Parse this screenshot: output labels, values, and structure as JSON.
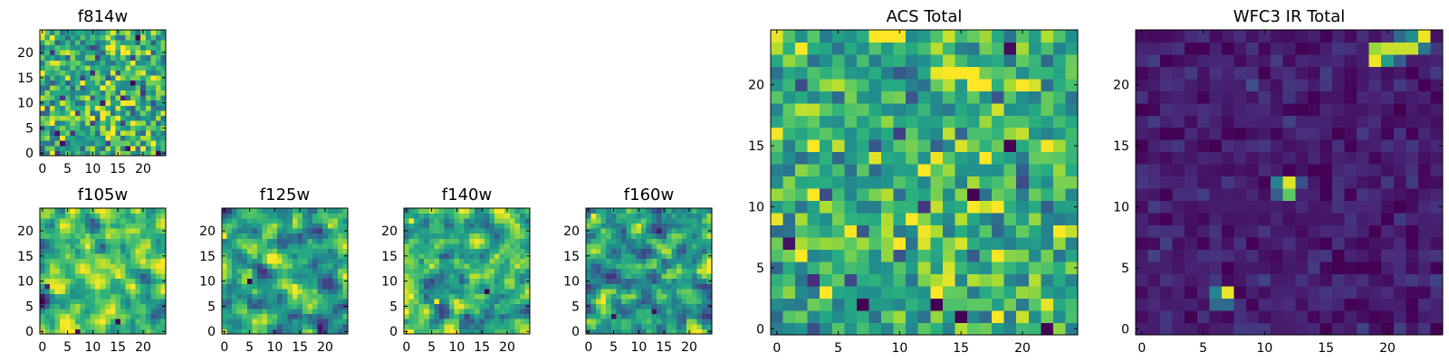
{
  "figure": {
    "description_free": true
  },
  "palette": {
    "colormap": "viridis",
    "frame_color": "#000000",
    "background": "#ffffff"
  },
  "chart_data": [
    {
      "id": "f814w",
      "type": "heatmap",
      "title": "f814w",
      "image_shape": [
        25,
        25
      ],
      "xlim": [
        -0.5,
        24.5
      ],
      "ylim": [
        -0.5,
        24.5
      ],
      "origin": "lower",
      "xticks": [
        0,
        5,
        10,
        15,
        20
      ],
      "yticks": [
        0,
        5,
        10,
        15,
        20
      ],
      "xtick_labels": [
        "0",
        "5",
        "10",
        "15",
        "20"
      ],
      "ytick_labels": [
        "0",
        "5",
        "10",
        "15",
        "20"
      ],
      "value_range": [
        0,
        1
      ],
      "pattern": "noise",
      "mean": 0.62,
      "spread": 0.2,
      "seed": 11,
      "features": [
        {
          "x": 18,
          "y": 14,
          "value": 0.0
        },
        {
          "x": 4,
          "y": 2,
          "value": 0.05
        },
        {
          "x": 17,
          "y": 1,
          "value": 0.05
        },
        {
          "x": 23,
          "y": 0,
          "value": 0.0
        },
        {
          "x": 2,
          "y": 0,
          "value": 1.0
        }
      ]
    },
    {
      "id": "f105w",
      "type": "heatmap",
      "title": "f105w",
      "image_shape": [
        25,
        25
      ],
      "xlim": [
        -0.5,
        24.5
      ],
      "ylim": [
        -0.5,
        24.5
      ],
      "origin": "lower",
      "xticks": [
        0,
        5,
        10,
        15,
        20
      ],
      "yticks": [
        0,
        5,
        10,
        15,
        20
      ],
      "xtick_labels": [
        "0",
        "5",
        "10",
        "15",
        "20"
      ],
      "ytick_labels": [
        "0",
        "5",
        "10",
        "15",
        "20"
      ],
      "value_range": [
        0,
        1
      ],
      "pattern": "smooth-noise",
      "mean": 0.66,
      "spread": 0.22,
      "seed": 23,
      "features": [
        {
          "x": 15,
          "y": 2,
          "value": 0.0
        },
        {
          "x": 7,
          "y": 0,
          "value": 0.05
        },
        {
          "x": 1,
          "y": 9,
          "value": 0.1
        }
      ]
    },
    {
      "id": "f125w",
      "type": "heatmap",
      "title": "f125w",
      "image_shape": [
        25,
        25
      ],
      "xlim": [
        -0.5,
        24.5
      ],
      "ylim": [
        -0.5,
        24.5
      ],
      "origin": "lower",
      "xticks": [
        0,
        5,
        10,
        15,
        20
      ],
      "yticks": [
        0,
        5,
        10,
        15,
        20
      ],
      "xtick_labels": [
        "0",
        "5",
        "10",
        "15",
        "20"
      ],
      "ytick_labels": [
        "0",
        "5",
        "10",
        "15",
        "20"
      ],
      "value_range": [
        0,
        1
      ],
      "pattern": "smooth-noise",
      "mean": 0.6,
      "spread": 0.25,
      "seed": 37,
      "features": [
        {
          "x": 5,
          "y": 10,
          "value": 0.0
        },
        {
          "x": 0,
          "y": 19,
          "value": 1.0
        },
        {
          "x": 0,
          "y": 0,
          "value": 1.0
        }
      ]
    },
    {
      "id": "f140w",
      "type": "heatmap",
      "title": "f140w",
      "image_shape": [
        25,
        25
      ],
      "xlim": [
        -0.5,
        24.5
      ],
      "ylim": [
        -0.5,
        24.5
      ],
      "origin": "lower",
      "xticks": [
        0,
        5,
        10,
        15,
        20
      ],
      "yticks": [
        0,
        5,
        10,
        15,
        20
      ],
      "xtick_labels": [
        "0",
        "5",
        "10",
        "15",
        "20"
      ],
      "ytick_labels": [
        "0",
        "5",
        "10",
        "15",
        "20"
      ],
      "value_range": [
        0,
        1
      ],
      "pattern": "smooth-noise",
      "mean": 0.56,
      "spread": 0.25,
      "seed": 51,
      "features": [
        {
          "x": 6,
          "y": 6,
          "value": 1.0
        },
        {
          "x": 16,
          "y": 8,
          "value": 0.0
        },
        {
          "x": 1,
          "y": 22,
          "value": 1.0
        },
        {
          "x": 0,
          "y": 0,
          "value": 1.0
        }
      ]
    },
    {
      "id": "f160w",
      "type": "heatmap",
      "title": "f160w",
      "image_shape": [
        25,
        25
      ],
      "xlim": [
        -0.5,
        24.5
      ],
      "ylim": [
        -0.5,
        24.5
      ],
      "origin": "lower",
      "xticks": [
        0,
        5,
        10,
        15,
        20
      ],
      "yticks": [
        0,
        5,
        10,
        15,
        20
      ],
      "xtick_labels": [
        "0",
        "5",
        "10",
        "15",
        "20"
      ],
      "ytick_labels": [
        "0",
        "5",
        "10",
        "15",
        "20"
      ],
      "value_range": [
        0,
        1
      ],
      "pattern": "smooth-noise",
      "mean": 0.55,
      "spread": 0.26,
      "seed": 67,
      "features": [
        {
          "x": 1,
          "y": 23,
          "value": 1.0
        },
        {
          "x": 13,
          "y": 4,
          "value": 0.05
        },
        {
          "x": 5,
          "y": 3,
          "value": 0.05
        }
      ]
    },
    {
      "id": "acs-total",
      "type": "heatmap",
      "title": "ACS Total",
      "image_shape": [
        25,
        25
      ],
      "xlim": [
        -0.5,
        24.5
      ],
      "ylim": [
        -0.5,
        24.5
      ],
      "origin": "lower",
      "xticks": [
        0,
        5,
        10,
        15,
        20
      ],
      "yticks": [
        0,
        5,
        10,
        15,
        20
      ],
      "xtick_labels": [
        "0",
        "5",
        "10",
        "15",
        "20"
      ],
      "ytick_labels": [
        "0",
        "5",
        "10",
        "15",
        "20"
      ],
      "value_range": [
        0,
        1
      ],
      "pattern": "noise",
      "mean": 0.62,
      "spread": 0.17,
      "seed": 11,
      "features": [
        {
          "x": 19,
          "y": 15,
          "value": 0.0
        },
        {
          "x": 16,
          "y": 11,
          "value": 0.0
        },
        {
          "x": 7,
          "y": 2,
          "value": 0.0
        },
        {
          "x": 13,
          "y": 2,
          "value": 0.0
        },
        {
          "x": 15,
          "y": 1,
          "value": 0.0
        },
        {
          "x": 22,
          "y": 0,
          "value": 0.0
        },
        {
          "x": 1,
          "y": 7,
          "value": 0.05
        },
        {
          "x": 3,
          "y": 15,
          "value": 1.0
        },
        {
          "x": 3,
          "y": 11,
          "value": 1.0
        },
        {
          "x": 8,
          "y": 24,
          "value": 1.0
        },
        {
          "x": 9,
          "y": 24,
          "value": 1.0
        },
        {
          "x": 10,
          "y": 24,
          "value": 1.0
        },
        {
          "x": 15,
          "y": 21,
          "value": 1.0
        },
        {
          "x": 20,
          "y": 20,
          "value": 1.0
        },
        {
          "x": 23,
          "y": 8,
          "value": 1.0
        },
        {
          "x": 17,
          "y": 14,
          "value": 1.0
        }
      ]
    },
    {
      "id": "wfc3-ir-total",
      "type": "heatmap",
      "title": "WFC3 IR Total",
      "image_shape": [
        25,
        25
      ],
      "xlim": [
        -0.5,
        24.5
      ],
      "ylim": [
        -0.5,
        24.5
      ],
      "origin": "lower",
      "xticks": [
        0,
        5,
        10,
        15,
        20
      ],
      "yticks": [
        0,
        5,
        10,
        15,
        20
      ],
      "xtick_labels": [
        "0",
        "5",
        "10",
        "15",
        "20"
      ],
      "ytick_labels": [
        "0",
        "5",
        "10",
        "15",
        "20"
      ],
      "value_range": [
        0,
        1
      ],
      "pattern": "noise",
      "mean": 0.08,
      "spread": 0.05,
      "seed": 89,
      "features": [
        {
          "x": 12,
          "y": 12,
          "value": 0.95
        },
        {
          "x": 12,
          "y": 11,
          "value": 0.75
        },
        {
          "x": 11,
          "y": 12,
          "value": 0.45
        },
        {
          "x": 13,
          "y": 12,
          "value": 0.25
        },
        {
          "x": 11,
          "y": 11,
          "value": 0.3
        },
        {
          "x": 7,
          "y": 3,
          "value": 0.97
        },
        {
          "x": 6,
          "y": 3,
          "value": 0.45
        },
        {
          "x": 6,
          "y": 2,
          "value": 0.35
        },
        {
          "x": 7,
          "y": 2,
          "value": 0.35
        },
        {
          "x": 19,
          "y": 22,
          "value": 0.98
        },
        {
          "x": 20,
          "y": 23,
          "value": 0.92
        },
        {
          "x": 21,
          "y": 23,
          "value": 0.92
        },
        {
          "x": 22,
          "y": 23,
          "value": 0.92
        },
        {
          "x": 23,
          "y": 24,
          "value": 0.98
        },
        {
          "x": 19,
          "y": 23,
          "value": 0.85
        },
        {
          "x": 20,
          "y": 22,
          "value": 0.55
        },
        {
          "x": 22,
          "y": 24,
          "value": 0.5
        },
        {
          "x": 21,
          "y": 24,
          "value": 0.35
        },
        {
          "x": 21,
          "y": 22,
          "value": 0.3
        },
        {
          "x": 23,
          "y": 23,
          "value": 0.4
        }
      ]
    }
  ]
}
